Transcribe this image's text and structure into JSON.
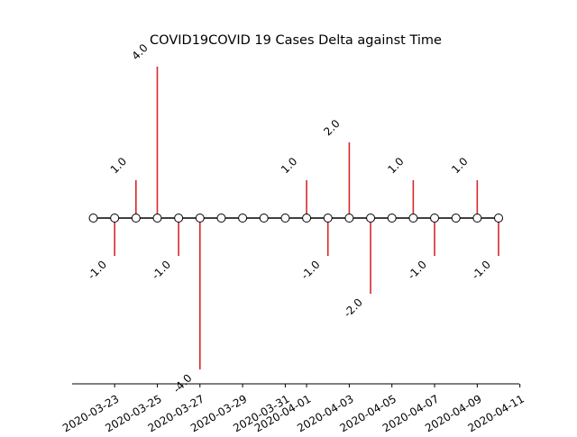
{
  "chart_data": {
    "type": "stem",
    "title": "COVID19COVID 19 Cases Delta against Time",
    "xlabel": "",
    "ylabel": "",
    "x": [
      "2020-03-22",
      "2020-03-23",
      "2020-03-24",
      "2020-03-25",
      "2020-03-26",
      "2020-03-27",
      "2020-03-28",
      "2020-03-29",
      "2020-03-30",
      "2020-03-31",
      "2020-04-01",
      "2020-04-02",
      "2020-04-03",
      "2020-04-04",
      "2020-04-05",
      "2020-04-06",
      "2020-04-07",
      "2020-04-08",
      "2020-04-09",
      "2020-04-10"
    ],
    "values": [
      0,
      -1,
      1,
      4,
      -1,
      -4,
      0,
      0,
      0,
      0,
      1,
      -1,
      2,
      -2,
      0,
      1,
      -1,
      0,
      1,
      -1
    ],
    "value_labels": [
      "",
      "-1.0",
      "1.0",
      "4.0",
      "-1.0",
      "-4.0",
      "",
      "",
      "",
      "",
      "1.0",
      "-1.0",
      "2.0",
      "-2.0",
      "",
      "1.0",
      "-1.0",
      "",
      "1.0",
      "-1.0"
    ],
    "xticks": [
      "2020-03-23",
      "2020-03-25",
      "2020-03-27",
      "2020-03-29",
      "2020-03-31",
      "2020-04-01",
      "2020-04-03",
      "2020-04-05",
      "2020-04-07",
      "2020-04-09",
      "2020-04-11"
    ],
    "ylim": [
      -4.5,
      4.5
    ],
    "grid": false,
    "colors": {
      "stem": "#d62728",
      "baseline": "#000000",
      "marker_fill": "#ffffff",
      "marker_edge": "#000000",
      "axis": "#000000",
      "text": "#000000"
    }
  }
}
